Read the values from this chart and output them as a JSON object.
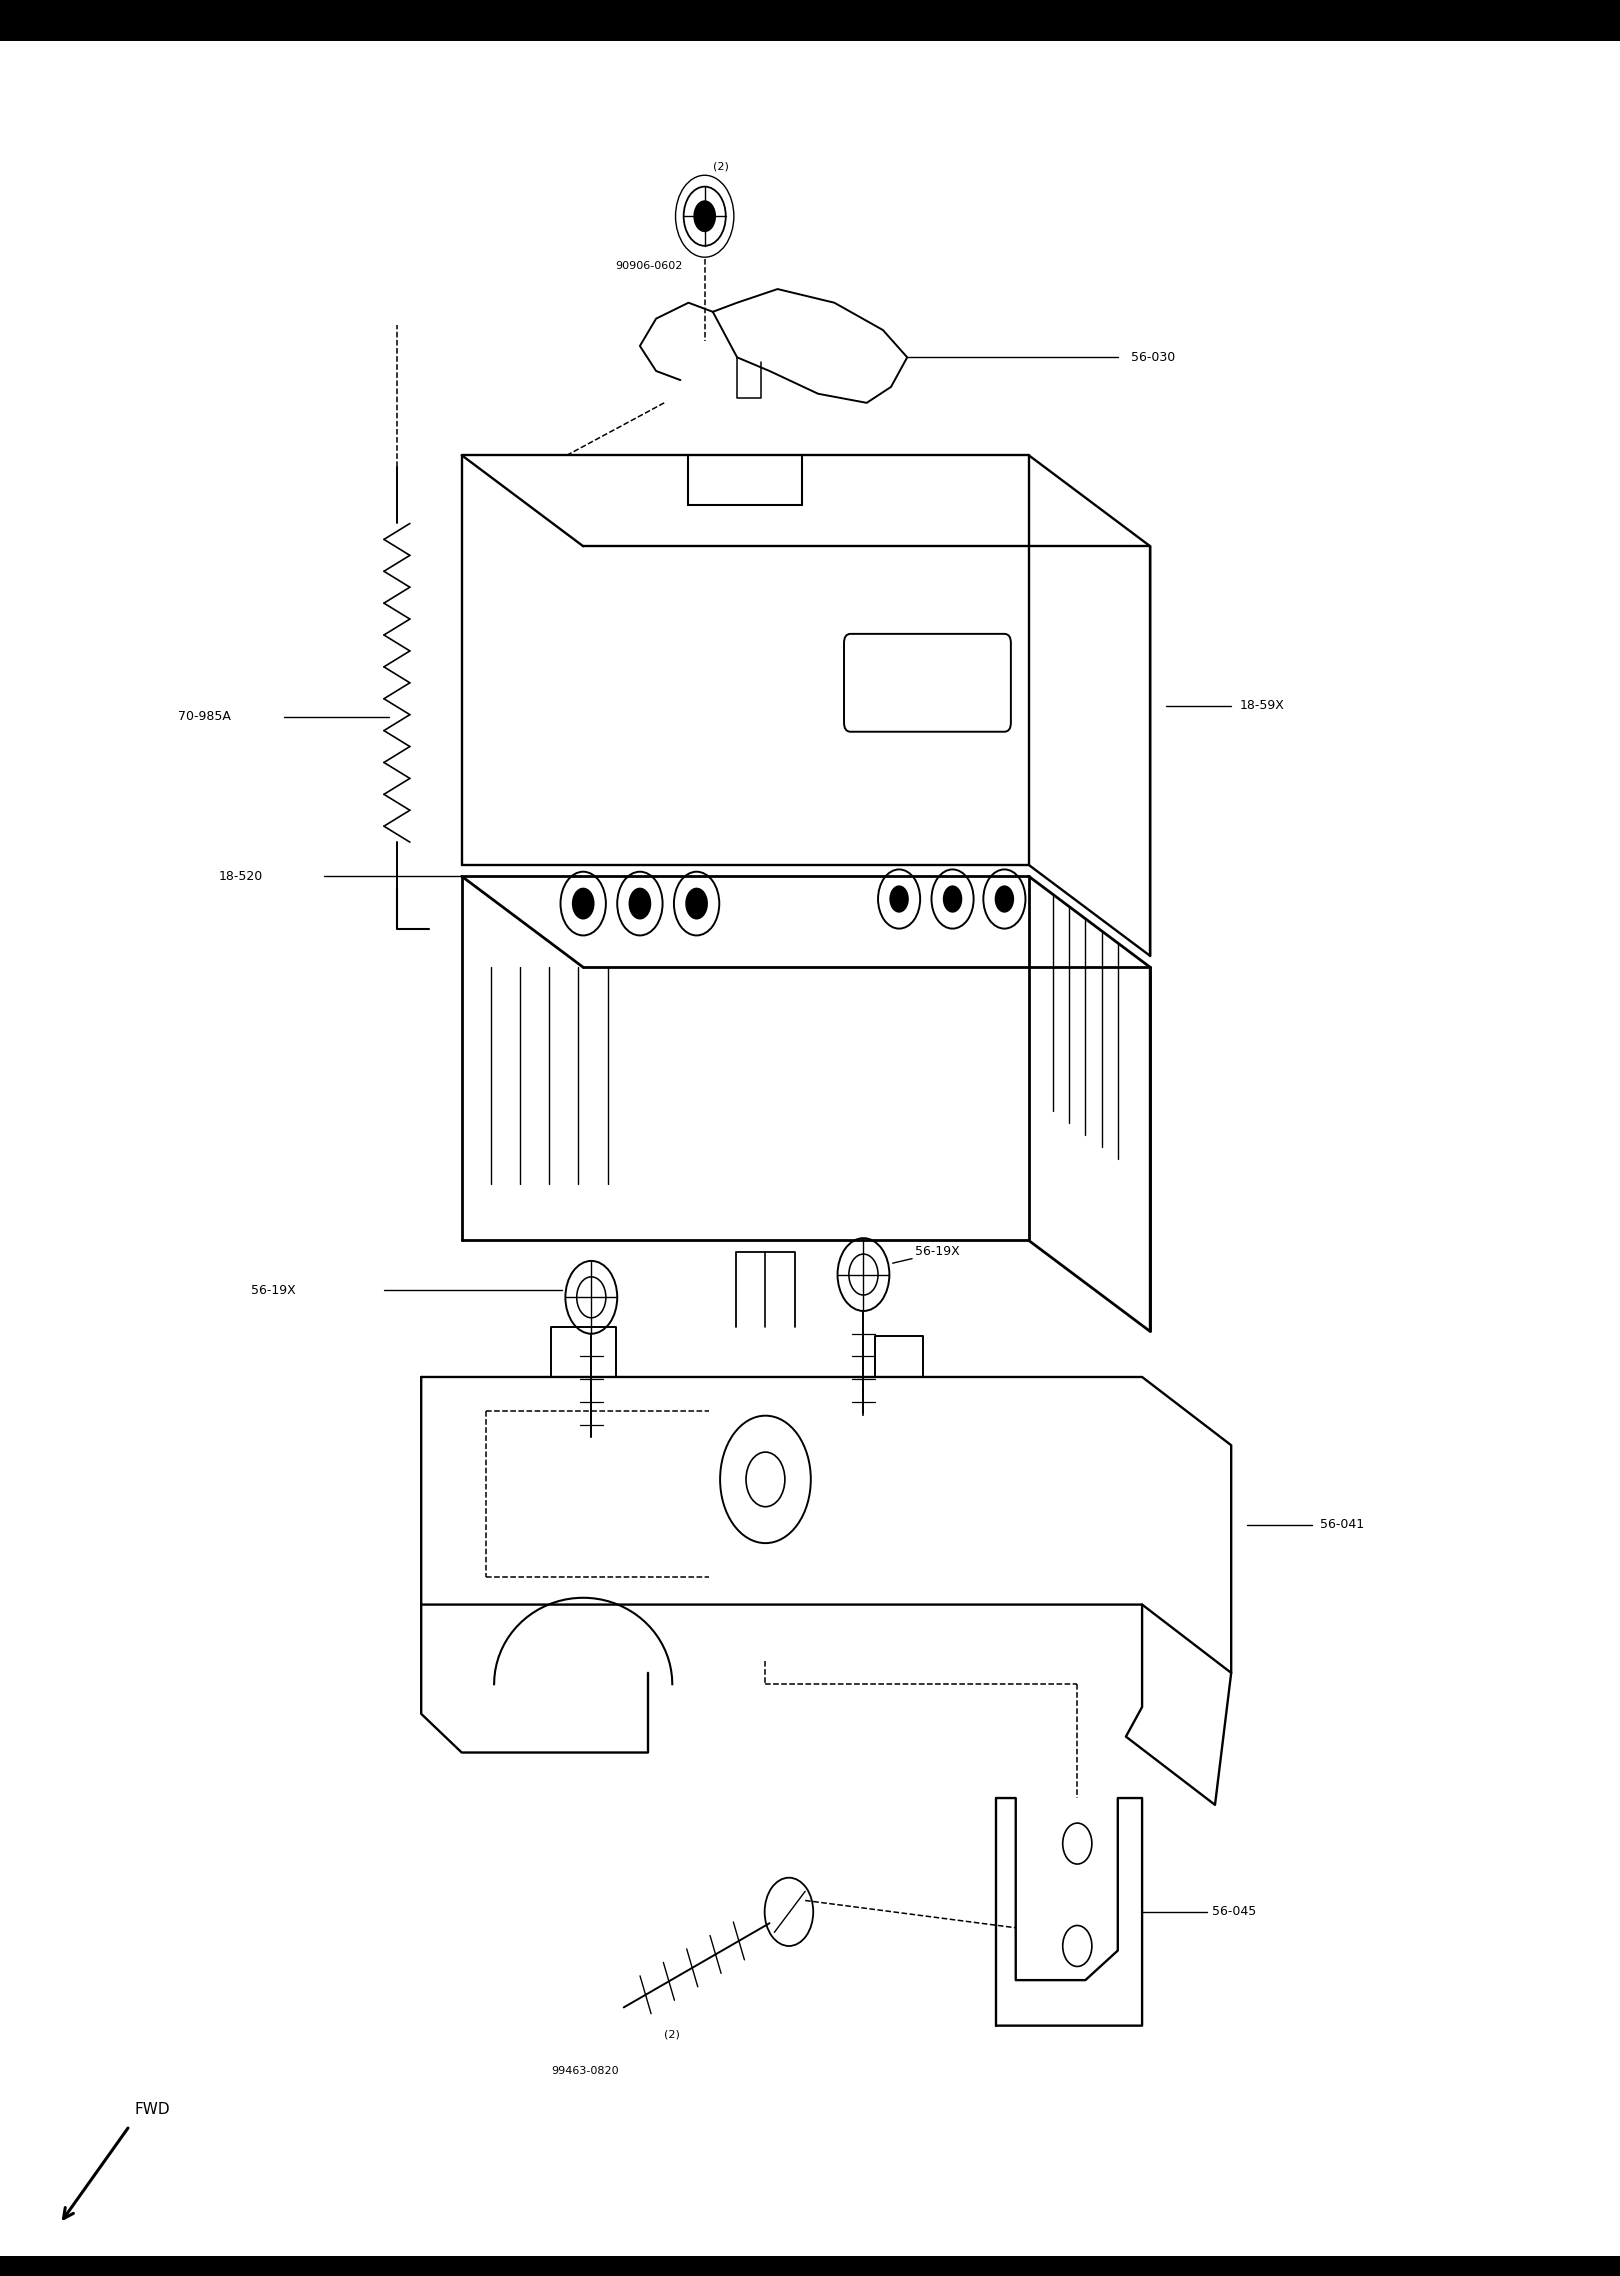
{
  "bg_color": "#ffffff",
  "header_bg": "#000000",
  "fig_width": 16.2,
  "fig_height": 22.76,
  "parts": [
    {
      "id": "90906-0602",
      "label": "(2)",
      "sublabel": "90906-0602"
    },
    {
      "id": "56-030",
      "label": "56-030"
    },
    {
      "id": "18-59X",
      "label": "18-59X"
    },
    {
      "id": "70-985A",
      "label": "70-985A"
    },
    {
      "id": "18-520",
      "label": "18-520"
    },
    {
      "id": "56-19X_L",
      "label": "56-19X"
    },
    {
      "id": "56-19X_R",
      "label": "56-19X"
    },
    {
      "id": "56-041",
      "label": "56-041"
    },
    {
      "id": "99463-0820",
      "label": "(2)",
      "sublabel": "99463-0820"
    },
    {
      "id": "56-045",
      "label": "56-045"
    }
  ]
}
